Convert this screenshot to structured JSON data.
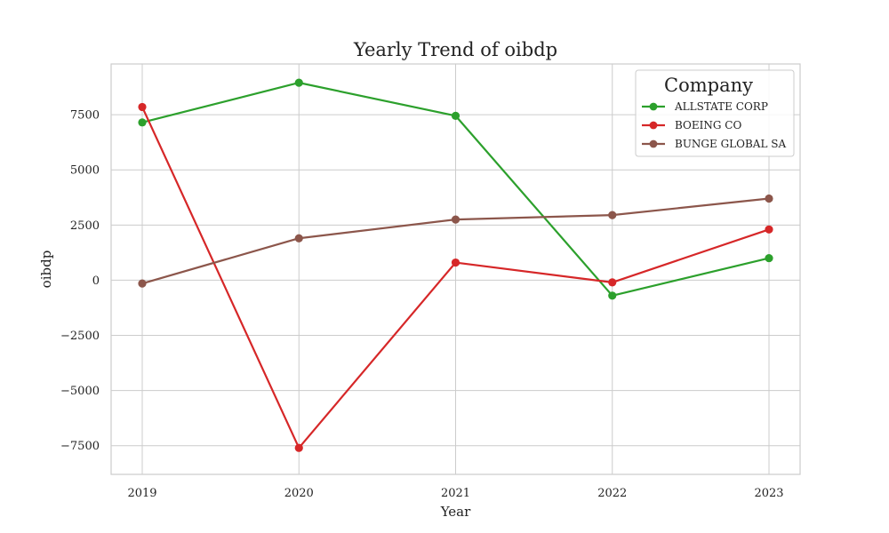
{
  "chart_data": {
    "type": "line",
    "title": "Yearly Trend of oibdp",
    "xlabel": "Year",
    "ylabel": "oibdp",
    "categories": [
      "2019",
      "2020",
      "2021",
      "2022",
      "2023"
    ],
    "ylim": [
      -8800,
      9800
    ],
    "yticks": [
      -7500,
      -5000,
      -2500,
      0,
      2500,
      5000,
      7500
    ],
    "ytick_labels": [
      "−7500",
      "−5000",
      "−2500",
      "0",
      "2500",
      "5000",
      "7500"
    ],
    "grid": true,
    "legend": {
      "title": "Company",
      "placement": "top-right"
    },
    "series": [
      {
        "name": "ALLSTATE CORP",
        "color": "#2ca02c",
        "values": [
          7150,
          8950,
          7450,
          -700,
          1000
        ]
      },
      {
        "name": "BOEING CO",
        "color": "#d62728",
        "values": [
          7850,
          -7600,
          800,
          -100,
          2300
        ]
      },
      {
        "name": "BUNGE GLOBAL SA",
        "color": "#8c564b",
        "values": [
          -150,
          1900,
          2750,
          2950,
          3700
        ]
      }
    ]
  }
}
